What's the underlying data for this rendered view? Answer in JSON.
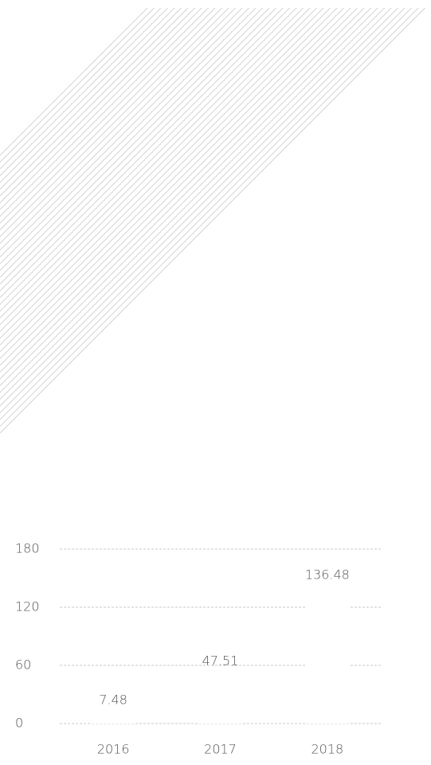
{
  "chart_data": {
    "type": "bar",
    "categories": [
      "2016",
      "2017",
      "2018"
    ],
    "values": [
      7.48,
      47.51,
      136.48
    ],
    "color": "#ffffff",
    "ylim": [
      0,
      180
    ],
    "yticks": [
      0,
      60,
      120,
      180
    ],
    "grid": true
  }
}
